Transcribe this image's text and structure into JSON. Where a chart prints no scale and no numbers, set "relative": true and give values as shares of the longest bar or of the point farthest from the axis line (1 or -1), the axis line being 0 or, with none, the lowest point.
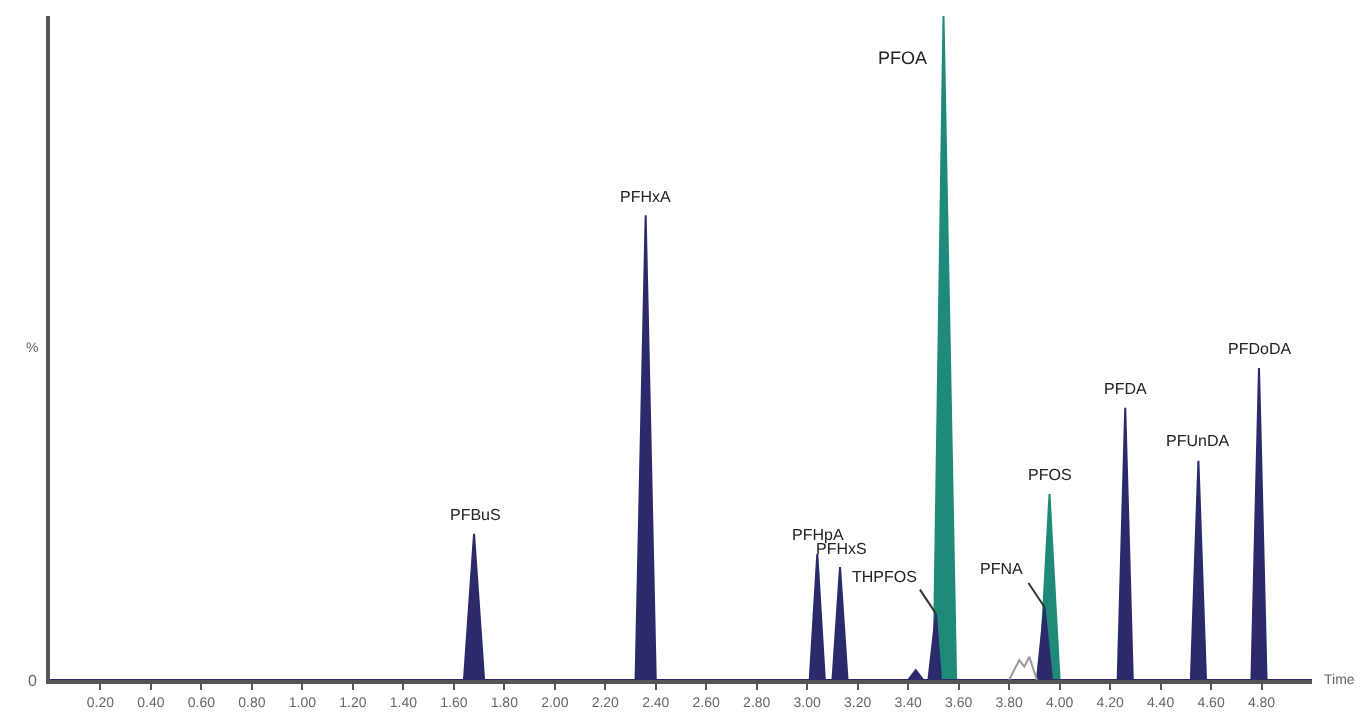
{
  "chart_data": {
    "type": "area",
    "relative": true,
    "xlabel": "Time",
    "ylabel": "%",
    "xlim": [
      0,
      5.0
    ],
    "xticks": [
      {
        "value": 0.2,
        "label": "0.20"
      },
      {
        "value": 0.4,
        "label": "0.40"
      },
      {
        "value": 0.6,
        "label": "0.60"
      },
      {
        "value": 0.8,
        "label": "0.80"
      },
      {
        "value": 1.0,
        "label": "1.00"
      },
      {
        "value": 1.2,
        "label": "1.20"
      },
      {
        "value": 1.4,
        "label": "1.40"
      },
      {
        "value": 1.6,
        "label": "1.60"
      },
      {
        "value": 1.8,
        "label": "1.80"
      },
      {
        "value": 2.0,
        "label": "2.00"
      },
      {
        "value": 2.2,
        "label": "2.20"
      },
      {
        "value": 2.4,
        "label": "2.40"
      },
      {
        "value": 2.6,
        "label": "2.60"
      },
      {
        "value": 2.8,
        "label": "2.80"
      },
      {
        "value": 3.0,
        "label": "3.00"
      },
      {
        "value": 3.2,
        "label": "3.20"
      },
      {
        "value": 3.4,
        "label": "3.40"
      },
      {
        "value": 3.6,
        "label": "3.60"
      },
      {
        "value": 3.8,
        "label": "3.80"
      },
      {
        "value": 4.0,
        "label": "4.00"
      },
      {
        "value": 4.2,
        "label": "4.20"
      },
      {
        "value": 4.4,
        "label": "4.40"
      },
      {
        "value": 4.6,
        "label": "4.60"
      },
      {
        "value": 4.8,
        "label": "4.80"
      }
    ],
    "series": [
      {
        "color": "#1f8a78",
        "x": [
          0,
          3.5,
          3.54,
          3.59,
          3.92,
          3.96,
          4.0,
          5.0
        ],
        "values": [
          0,
          0,
          1.0,
          0,
          0,
          0.28,
          0,
          0
        ]
      },
      {
        "color": "#2b2a6b",
        "x": [
          0,
          1.64,
          1.68,
          1.72,
          2.32,
          2.36,
          2.4,
          3.01,
          3.04,
          3.07,
          3.1,
          3.13,
          3.16,
          3.4,
          3.43,
          3.46,
          3.48,
          3.51,
          3.53,
          3.91,
          3.94,
          3.97,
          4.23,
          4.26,
          4.29,
          4.52,
          4.55,
          4.58,
          4.76,
          4.79,
          4.82,
          5.0
        ],
        "values": [
          0,
          0,
          0.22,
          0,
          0,
          0.7,
          0,
          0,
          0.19,
          0,
          0,
          0.17,
          0,
          0,
          0.015,
          0,
          0,
          0.1,
          0,
          0,
          0.11,
          0,
          0,
          0.41,
          0,
          0,
          0.33,
          0,
          0,
          0.47,
          0,
          0
        ]
      },
      {
        "type": "line",
        "color": "#999999",
        "x": [
          3.8,
          3.84,
          3.86,
          3.88,
          3.91
        ],
        "values": [
          0,
          0.03,
          0.02,
          0.035,
          0
        ]
      }
    ],
    "annotations": [
      {
        "text": "PFBuS",
        "x": 1.68,
        "y": 0.22
      },
      {
        "text": "PFHxA",
        "x": 2.36,
        "y": 0.7
      },
      {
        "text": "PFHpA",
        "x": 3.04,
        "y": 0.19
      },
      {
        "text": "PFHxS",
        "x": 3.13,
        "y": 0.17
      },
      {
        "text": "THPFOS",
        "x": 3.51,
        "y": 0.1
      },
      {
        "text": "PFOA",
        "x": 3.54,
        "y": 1.0
      },
      {
        "text": "PFNA",
        "x": 3.94,
        "y": 0.11
      },
      {
        "text": "PFOS",
        "x": 3.96,
        "y": 0.28
      },
      {
        "text": "PFDA",
        "x": 4.26,
        "y": 0.41
      },
      {
        "text": "PFUnDA",
        "x": 4.55,
        "y": 0.33
      },
      {
        "text": "PFDoDA",
        "x": 4.79,
        "y": 0.47
      },
      "0"
    ]
  }
}
